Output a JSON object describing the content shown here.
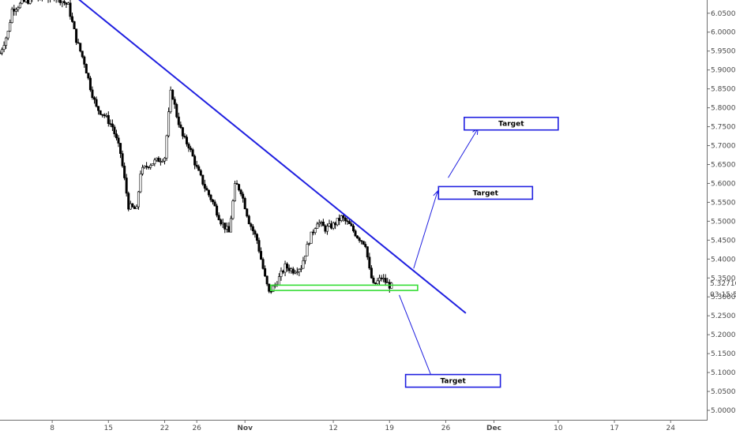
{
  "chart_data": {
    "type": "candlestick",
    "ylim": [
      4.975,
      6.085
    ],
    "y_ticks": [
      "6.05000",
      "6.00000",
      "5.95000",
      "5.90000",
      "5.85000",
      "5.80000",
      "5.75000",
      "5.70000",
      "5.65000",
      "5.60000",
      "5.55000",
      "5.50000",
      "5.45000",
      "5.40000",
      "5.35000",
      "5.30000",
      "5.25000",
      "5.20000",
      "5.15000",
      "5.10000",
      "5.05000",
      "5.00000"
    ],
    "x_ticks": [
      {
        "label": "8",
        "day": 8,
        "bold": false
      },
      {
        "label": "15",
        "day": 15,
        "bold": false
      },
      {
        "label": "22",
        "day": 22,
        "bold": false
      },
      {
        "label": "26",
        "day": 26,
        "bold": false
      },
      {
        "label": "Nov",
        "day": 32,
        "bold": true
      },
      {
        "label": "12",
        "day": 43,
        "bold": false
      },
      {
        "label": "19",
        "day": 50,
        "bold": false
      },
      {
        "label": "26",
        "day": 57,
        "bold": false
      },
      {
        "label": "Dec",
        "day": 63,
        "bold": true
      },
      {
        "label": "10",
        "day": 71,
        "bold": false
      },
      {
        "label": "17",
        "day": 78,
        "bold": false
      },
      {
        "label": "24",
        "day": 85,
        "bold": false
      }
    ],
    "x_day_range": [
      1.5,
      89.5
    ],
    "price_anchors": [
      [
        1.5,
        5.945
      ],
      [
        2.5,
        6.0
      ],
      [
        3.0,
        6.06
      ],
      [
        4.5,
        6.08
      ],
      [
        6.0,
        6.09
      ],
      [
        8.5,
        6.095
      ],
      [
        10.0,
        6.07
      ],
      [
        11.0,
        5.98
      ],
      [
        12.0,
        5.92
      ],
      [
        12.8,
        5.85
      ],
      [
        13.5,
        5.8
      ],
      [
        14.5,
        5.78
      ],
      [
        15.5,
        5.75
      ],
      [
        16.5,
        5.68
      ],
      [
        17.5,
        5.54
      ],
      [
        18.5,
        5.53
      ],
      [
        19.0,
        5.63
      ],
      [
        20.0,
        5.65
      ],
      [
        21.0,
        5.66
      ],
      [
        22.0,
        5.67
      ],
      [
        22.8,
        5.85
      ],
      [
        23.5,
        5.78
      ],
      [
        24.3,
        5.72
      ],
      [
        25.0,
        5.7
      ],
      [
        26.0,
        5.64
      ],
      [
        27.0,
        5.59
      ],
      [
        28.0,
        5.55
      ],
      [
        29.0,
        5.5
      ],
      [
        30.0,
        5.47
      ],
      [
        30.8,
        5.6
      ],
      [
        31.5,
        5.58
      ],
      [
        32.5,
        5.5
      ],
      [
        33.5,
        5.45
      ],
      [
        34.5,
        5.35
      ],
      [
        35.0,
        5.31
      ],
      [
        36.0,
        5.34
      ],
      [
        37.0,
        5.38
      ],
      [
        38.0,
        5.37
      ],
      [
        39.0,
        5.38
      ],
      [
        40.0,
        5.45
      ],
      [
        41.0,
        5.5
      ],
      [
        42.0,
        5.48
      ],
      [
        43.0,
        5.49
      ],
      [
        44.0,
        5.51
      ],
      [
        45.0,
        5.49
      ],
      [
        46.0,
        5.46
      ],
      [
        47.0,
        5.44
      ],
      [
        47.5,
        5.37
      ],
      [
        48.0,
        5.33
      ],
      [
        49.0,
        5.35
      ],
      [
        50.0,
        5.33
      ],
      [
        50.3,
        5.327
      ]
    ],
    "last_price": "5.32716",
    "countdown": "03:15:52",
    "trendline": {
      "start": [
        11.0,
        6.092
      ],
      "end": [
        59.5,
        5.257
      ],
      "color": "#2020e0"
    },
    "support_zone": {
      "x_start": 35.2,
      "x_end": 53.5,
      "y_low": 5.317,
      "y_high": 5.331,
      "color": "#33dd33"
    },
    "scenario_arrows": [
      {
        "from": [
          53.0,
          5.375
        ],
        "to": [
          56.0,
          5.58
        ]
      },
      {
        "from": [
          57.3,
          5.615
        ],
        "to": [
          61.0,
          5.745
        ]
      },
      {
        "from": [
          51.2,
          5.305
        ],
        "to": [
          55.5,
          5.075
        ]
      }
    ],
    "targets": [
      {
        "label": "Target",
        "x_start": 59.3,
        "x_end": 71.0,
        "y_center": 5.758
      },
      {
        "label": "Target",
        "x_start": 56.1,
        "x_end": 67.8,
        "y_center": 5.575
      },
      {
        "label": "Target",
        "x_start": 52.0,
        "x_end": 63.8,
        "y_center": 5.078
      }
    ]
  }
}
